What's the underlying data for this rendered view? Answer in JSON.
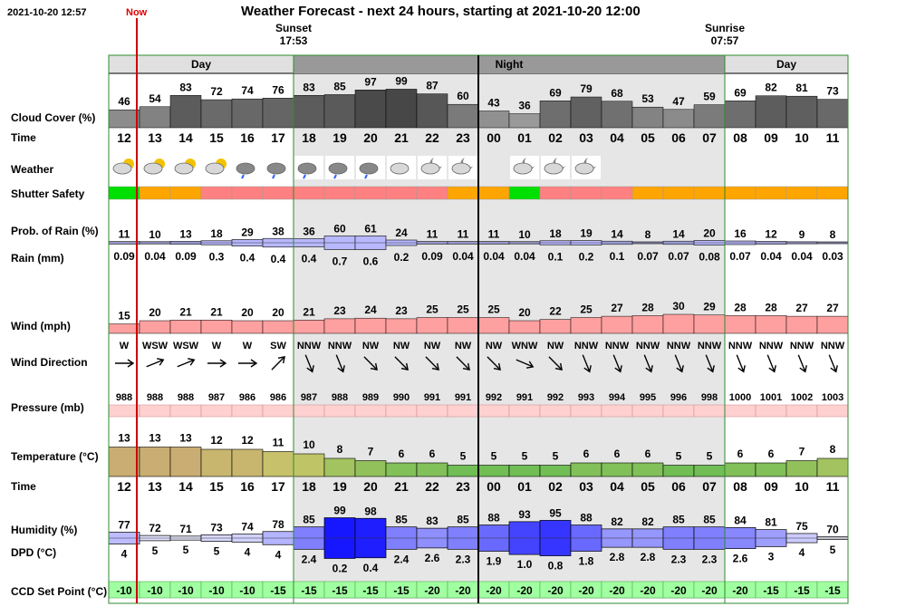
{
  "header": {
    "datetime": "2021-10-20 12:57",
    "now_label": "Now",
    "title": "Weather Forecast - next 24 hours, starting at 2021-10-20 12:00"
  },
  "sun": {
    "sunset_label": "Sunset",
    "sunset_time": "17:53",
    "sunrise_label": "Sunrise",
    "sunrise_time": "07:57"
  },
  "periods": [
    "Day",
    "Night",
    "Day"
  ],
  "row_labels": {
    "cloud": "Cloud Cover (%)",
    "time": "Time",
    "weather": "Weather",
    "shutter": "Shutter Safety",
    "prob_rain": "Prob. of Rain (%)",
    "rain": "Rain (mm)",
    "wind": "Wind (mph)",
    "wind_dir": "Wind Direction",
    "pressure": "Pressure (mb)",
    "temperature": "Temperature (°C)",
    "time2": "Time",
    "humidity": "Humidity (%)",
    "dpd": "DPD (°C)",
    "ccd": "CCD Set Point (°C)"
  },
  "chart_data": {
    "type": "table",
    "hours": [
      "12",
      "13",
      "14",
      "15",
      "16",
      "17",
      "18",
      "19",
      "20",
      "21",
      "22",
      "23",
      "00",
      "01",
      "02",
      "03",
      "04",
      "05",
      "06",
      "07",
      "08",
      "09",
      "10",
      "11"
    ],
    "cloud_cover": [
      46,
      54,
      83,
      72,
      74,
      76,
      83,
      85,
      97,
      99,
      87,
      60,
      43,
      36,
      69,
      79,
      68,
      53,
      47,
      59,
      69,
      82,
      81,
      73
    ],
    "weather_icons": [
      "sun-cloud",
      "sun-cloud",
      "sun-cloud",
      "sun-cloud",
      "rain-cloud",
      "rain-cloud",
      "rain-cloud",
      "rain-cloud",
      "rain-cloud",
      "cloud",
      "moon-cloud",
      "moon-cloud",
      "",
      "moon-cloud",
      "moon-cloud",
      "moon-cloud",
      "",
      "",
      "",
      "",
      "",
      "",
      "",
      ""
    ],
    "shutter_safety": [
      "green",
      "orange",
      "orange",
      "red",
      "red",
      "red",
      "red",
      "red",
      "red",
      "red",
      "red",
      "orange",
      "orange",
      "green",
      "red",
      "red",
      "red",
      "orange",
      "orange",
      "orange",
      "orange",
      "orange",
      "orange",
      "orange"
    ],
    "prob_rain": [
      11,
      10,
      13,
      18,
      29,
      38,
      36,
      60,
      61,
      24,
      11,
      11,
      11,
      10,
      18,
      19,
      14,
      8,
      14,
      20,
      16,
      12,
      9,
      8
    ],
    "rain_mm": [
      "0.09",
      "0.04",
      "0.09",
      "0.3",
      "0.4",
      "0.4",
      "0.4",
      "0.7",
      "0.6",
      "0.2",
      "0.09",
      "0.04",
      "0.04",
      "0.04",
      "0.1",
      "0.2",
      "0.1",
      "0.07",
      "0.07",
      "0.08",
      "0.07",
      "0.04",
      "0.04",
      "0.03"
    ],
    "wind_mph": [
      15,
      20,
      21,
      21,
      20,
      20,
      21,
      23,
      24,
      23,
      25,
      25,
      25,
      20,
      22,
      25,
      27,
      28,
      30,
      29,
      28,
      28,
      27,
      27
    ],
    "wind_direction": [
      "W",
      "WSW",
      "WSW",
      "W",
      "W",
      "SW",
      "NNW",
      "NNW",
      "NW",
      "NW",
      "NW",
      "NW",
      "NW",
      "WNW",
      "NW",
      "NNW",
      "NNW",
      "NNW",
      "NNW",
      "NNW",
      "NNW",
      "NNW",
      "NNW",
      "NNW"
    ],
    "wind_bearing_deg": [
      270,
      248,
      248,
      270,
      270,
      225,
      338,
      338,
      315,
      315,
      315,
      315,
      315,
      293,
      315,
      338,
      338,
      338,
      338,
      338,
      338,
      338,
      338,
      338
    ],
    "pressure_mb": [
      988,
      988,
      988,
      987,
      986,
      986,
      987,
      988,
      989,
      990,
      991,
      991,
      992,
      991,
      992,
      993,
      994,
      995,
      996,
      998,
      1000,
      1001,
      1002,
      1003
    ],
    "temperature_c": [
      13,
      13,
      13,
      12,
      12,
      11,
      10,
      8,
      7,
      6,
      6,
      5,
      5,
      5,
      5,
      6,
      6,
      6,
      5,
      5,
      6,
      6,
      7,
      8
    ],
    "humidity_pct": [
      77,
      72,
      71,
      73,
      74,
      78,
      85,
      99,
      98,
      85,
      83,
      85,
      88,
      93,
      95,
      88,
      82,
      82,
      85,
      85,
      84,
      81,
      75,
      70
    ],
    "dpd_c": [
      "4",
      "5",
      "5",
      "5",
      "4",
      "4",
      "2.4",
      "0.2",
      "0.4",
      "2.4",
      "2.6",
      "2.3",
      "1.9",
      "1.0",
      "0.8",
      "1.8",
      "2.8",
      "2.8",
      "2.3",
      "2.3",
      "2.6",
      "3",
      "4",
      "5"
    ],
    "ccd_set_point_c": [
      -10,
      -10,
      -10,
      -10,
      -10,
      -15,
      -15,
      -15,
      -15,
      -15,
      -20,
      -20,
      -20,
      -20,
      -20,
      -20,
      -20,
      -20,
      -20,
      -20,
      -20,
      -15,
      -15,
      -15
    ]
  },
  "colors": {
    "night_shade": "#e6e6e6",
    "border_green": "#2e8b2e",
    "now_line": "#cc0000",
    "shutter_green": "#00e000",
    "shutter_orange": "#ffa500",
    "shutter_red": "#ff8080",
    "rain_blue": "#b8b8ff",
    "wind_pink": "#ffa0a0",
    "pressure_pink": "#ffd0d0",
    "ccd_green": "#a0ffa0"
  }
}
